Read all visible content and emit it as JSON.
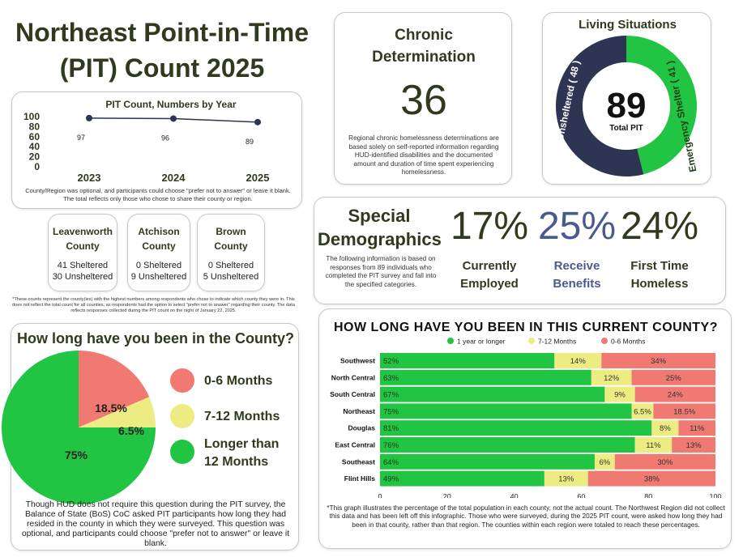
{
  "page": {
    "title_line1": "Northeast Point-in-Time",
    "title_line2": "(PIT) Count 2025"
  },
  "colors": {
    "green": "#22c444",
    "red": "#f07a72",
    "yellow": "#ecec82",
    "navy": "#2d3553",
    "blue": "#4a5a8f",
    "dark": "#2f3a1f"
  },
  "pit_by_year": {
    "footnote": "County/Region was optional, and participants could choose \"prefer not to answer\" or leave it blank. The total reflects only those who chose to share their county or region."
  },
  "counties": [
    {
      "name_line1": "Leavenworth",
      "name_line2": "County",
      "sheltered": "41 Sheltered",
      "unsheltered": "30 Unsheltered"
    },
    {
      "name_line1": "Atchison",
      "name_line2": "County",
      "sheltered": "0 Sheltered",
      "unsheltered": "9 Unsheltered"
    },
    {
      "name_line1": "Brown",
      "name_line2": "County",
      "sheltered": "0 Sheltered",
      "unsheltered": "5 Unsheltered"
    }
  ],
  "counties_note": "*These counts represent the county(ies) with the highest numbers among respondents who chose to indicate which county they were in. This does not reflect the total count for all counties, as respondents had the option to select \"prefer not to answer\" regarding their county. The data reflects responses collected during the PIT count on the night of January 22, 2025.",
  "chronic": {
    "title_line1": "Chronic",
    "title_line2": "Determination",
    "value": "36",
    "description": "Regional chronic homelessness determinations are based solely on self-reported information regarding HUD-identified disabilities and the documented amount and duration of time spent experiencing homelessness."
  },
  "living": {
    "title": "Living Situations",
    "total": "89",
    "total_label": "Total PIT",
    "unsheltered_label": "Unsheltered ( 48 )",
    "sheltered_label": "Emergency Shelter ( 41 )"
  },
  "special": {
    "title_line1": "Special",
    "title_line2": "Demographics",
    "description": "The following information is based on responses from 89 individuals who completed the PIT survey and fall into the specified categories.",
    "stats": [
      {
        "value": "17%",
        "label_line1": "Currently",
        "label_line2": "Employed"
      },
      {
        "value": "25%",
        "label_line1": "Receive",
        "label_line2": "Benefits"
      },
      {
        "value": "24%",
        "label_line1": "First Time",
        "label_line2": "Homeless"
      }
    ]
  },
  "county_time": {
    "title": "How long have you been in the County?",
    "legend": [
      {
        "label_line1": "0-6 Months",
        "label_line2": ""
      },
      {
        "label_line1": "7-12 Months",
        "label_line2": ""
      },
      {
        "label_line1": "Longer than",
        "label_line2": "12 Months"
      }
    ],
    "description": "Though HUD does not require this question during the PIT survey, the Balance of State (BoS) CoC asked PIT participants how long they had resided in the county in which they were surveyed. This question was optional, and participants could choose \"prefer not to answer\" or leave it blank."
  },
  "current_county": {
    "title": "HOW LONG HAVE YOU BEEN IN THIS CURRENT COUNTY?",
    "footnote": "*This graph illustrates the percentage of the total population in each county, not the actual count. The Northwest Region did not collect this data and has been left off this infographic. Those who were surveyed, during the 2025 PIT count, were asked how long they had been in that county, rather than that region. The counties within each region were totaled to reach these percentages."
  },
  "chart_data": [
    {
      "type": "line",
      "title": "PIT Count, Numbers by Year",
      "x": [
        "2023",
        "2024",
        "2025"
      ],
      "values": [
        97,
        96,
        89
      ],
      "ylim": [
        0,
        100
      ],
      "yticks": [
        0,
        20,
        40,
        60,
        80,
        100
      ],
      "xlabel": "",
      "ylabel": ""
    },
    {
      "type": "pie",
      "title": "Living Situations",
      "labels": [
        "Unsheltered",
        "Emergency Shelter"
      ],
      "values": [
        48,
        41
      ]
    },
    {
      "type": "pie",
      "title": "How long have you been in the County?",
      "labels": [
        "0-6 Months",
        "7-12 Months",
        "Longer than 12 Months"
      ],
      "values": [
        18.5,
        6.5,
        75
      ],
      "value_labels": [
        "18.5%",
        "6.5%",
        "75%"
      ]
    },
    {
      "type": "bar",
      "orientation": "horizontal-stacked",
      "title": "HOW LONG HAVE YOU BEEN IN THIS CURRENT COUNTY?",
      "categories": [
        "Southwest",
        "North Central",
        "South Central",
        "Northeast",
        "Douglas",
        "East Central",
        "Southeast",
        "Flint Hills"
      ],
      "series": [
        {
          "name": "1 year or longer",
          "values": [
            52,
            63,
            67,
            75,
            81,
            76,
            64,
            49
          ],
          "labels": [
            "52%",
            "63%",
            "67%",
            "75%",
            "81%",
            "76%",
            "64%",
            "49%"
          ]
        },
        {
          "name": "7-12 Months",
          "values": [
            14,
            12,
            9,
            6.5,
            8,
            11,
            6,
            13
          ],
          "labels": [
            "14%",
            "12%",
            "9%",
            "6.5%",
            "8%",
            "11%",
            "6%",
            "13%"
          ]
        },
        {
          "name": "0-6 Months",
          "values": [
            34,
            25,
            24,
            18.5,
            11,
            13,
            30,
            38
          ],
          "labels": [
            "34%",
            "25%",
            "24%",
            "18.5%",
            "11%",
            "13%",
            "30%",
            "38%"
          ]
        }
      ],
      "xlim": [
        0,
        100
      ],
      "xticks": [
        "0",
        "20",
        "40",
        "60",
        "80",
        "100"
      ]
    }
  ]
}
